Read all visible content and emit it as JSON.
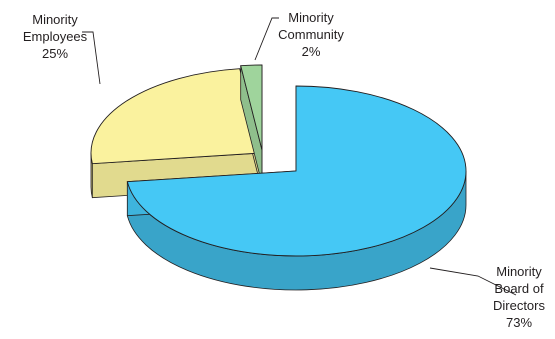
{
  "chart_data": {
    "type": "pie",
    "style": "3d-exploded",
    "slices": [
      {
        "label_lines": [
          "Minority",
          "Board of",
          "Directors"
        ],
        "pct_text": "73%",
        "value": 73,
        "color": "#45c8f5"
      },
      {
        "label_lines": [
          "Minority",
          "Employees"
        ],
        "pct_text": "25%",
        "value": 25,
        "color": "#faf29e"
      },
      {
        "label_lines": [
          "Minority",
          "Community"
        ],
        "pct_text": "2%",
        "value": 2,
        "color": "#9fd49c"
      }
    ]
  }
}
